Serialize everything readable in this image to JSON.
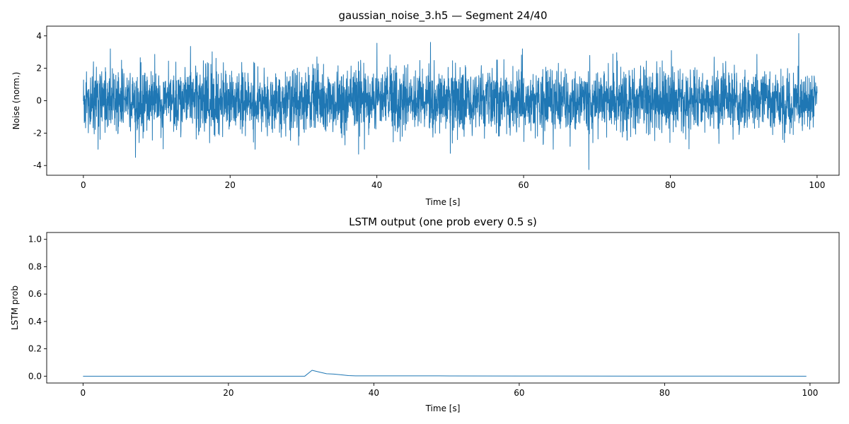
{
  "chart_data": [
    {
      "type": "line",
      "title": "gaussian_noise_3.h5 — Segment 24/40",
      "xlabel": "Time [s]",
      "ylabel": "Noise (norm.)",
      "xlim": [
        -5,
        103
      ],
      "ylim": [
        -4.6,
        4.6
      ],
      "xticks": [
        0,
        20,
        40,
        60,
        80,
        100
      ],
      "yticks": [
        -4,
        -2,
        0,
        2,
        4
      ],
      "grid": false,
      "color": "#1f77b4",
      "series": [
        {
          "x_range": [
            0,
            100
          ],
          "distribution": "gaussian",
          "mean": 0,
          "std": 1,
          "min": -4.25,
          "max": 4.15,
          "peaks": [
            {
              "x": 97.5,
              "y": 4.15
            },
            {
              "x": 68.9,
              "y": 3.7
            },
            {
              "x": 47.3,
              "y": 3.6
            },
            {
              "x": 40.0,
              "y": 3.55
            },
            {
              "x": 14.6,
              "y": 3.35
            },
            {
              "x": 68.9,
              "y": -4.25
            },
            {
              "x": 7.1,
              "y": -3.5
            },
            {
              "x": 37.5,
              "y": -3.3
            },
            {
              "x": 50.0,
              "y": -3.25
            },
            {
              "x": 2.0,
              "y": -3.0
            },
            {
              "x": 17.2,
              "y": -2.6
            }
          ]
        }
      ]
    },
    {
      "type": "line",
      "title": "LSTM output (one prob every 0.5 s)",
      "xlabel": "Time [s]",
      "ylabel": "LSTM prob",
      "xlim": [
        -5,
        104
      ],
      "ylim": [
        -0.05,
        1.05
      ],
      "xticks": [
        0,
        20,
        40,
        60,
        80,
        100
      ],
      "yticks": [
        0.0,
        0.2,
        0.4,
        0.6,
        0.8,
        1.0
      ],
      "grid": false,
      "color": "#1f77b4",
      "series": [
        {
          "x": [
            0,
            30.5,
            31.5,
            32.5,
            33.5,
            34.5,
            35.5,
            36.5,
            37.5,
            49,
            60,
            99.5
          ],
          "y": [
            0.0,
            0.0,
            0.043,
            0.03,
            0.018,
            0.015,
            0.01,
            0.004,
            0.002,
            0.002,
            0.001,
            0.0
          ]
        }
      ]
    }
  ]
}
